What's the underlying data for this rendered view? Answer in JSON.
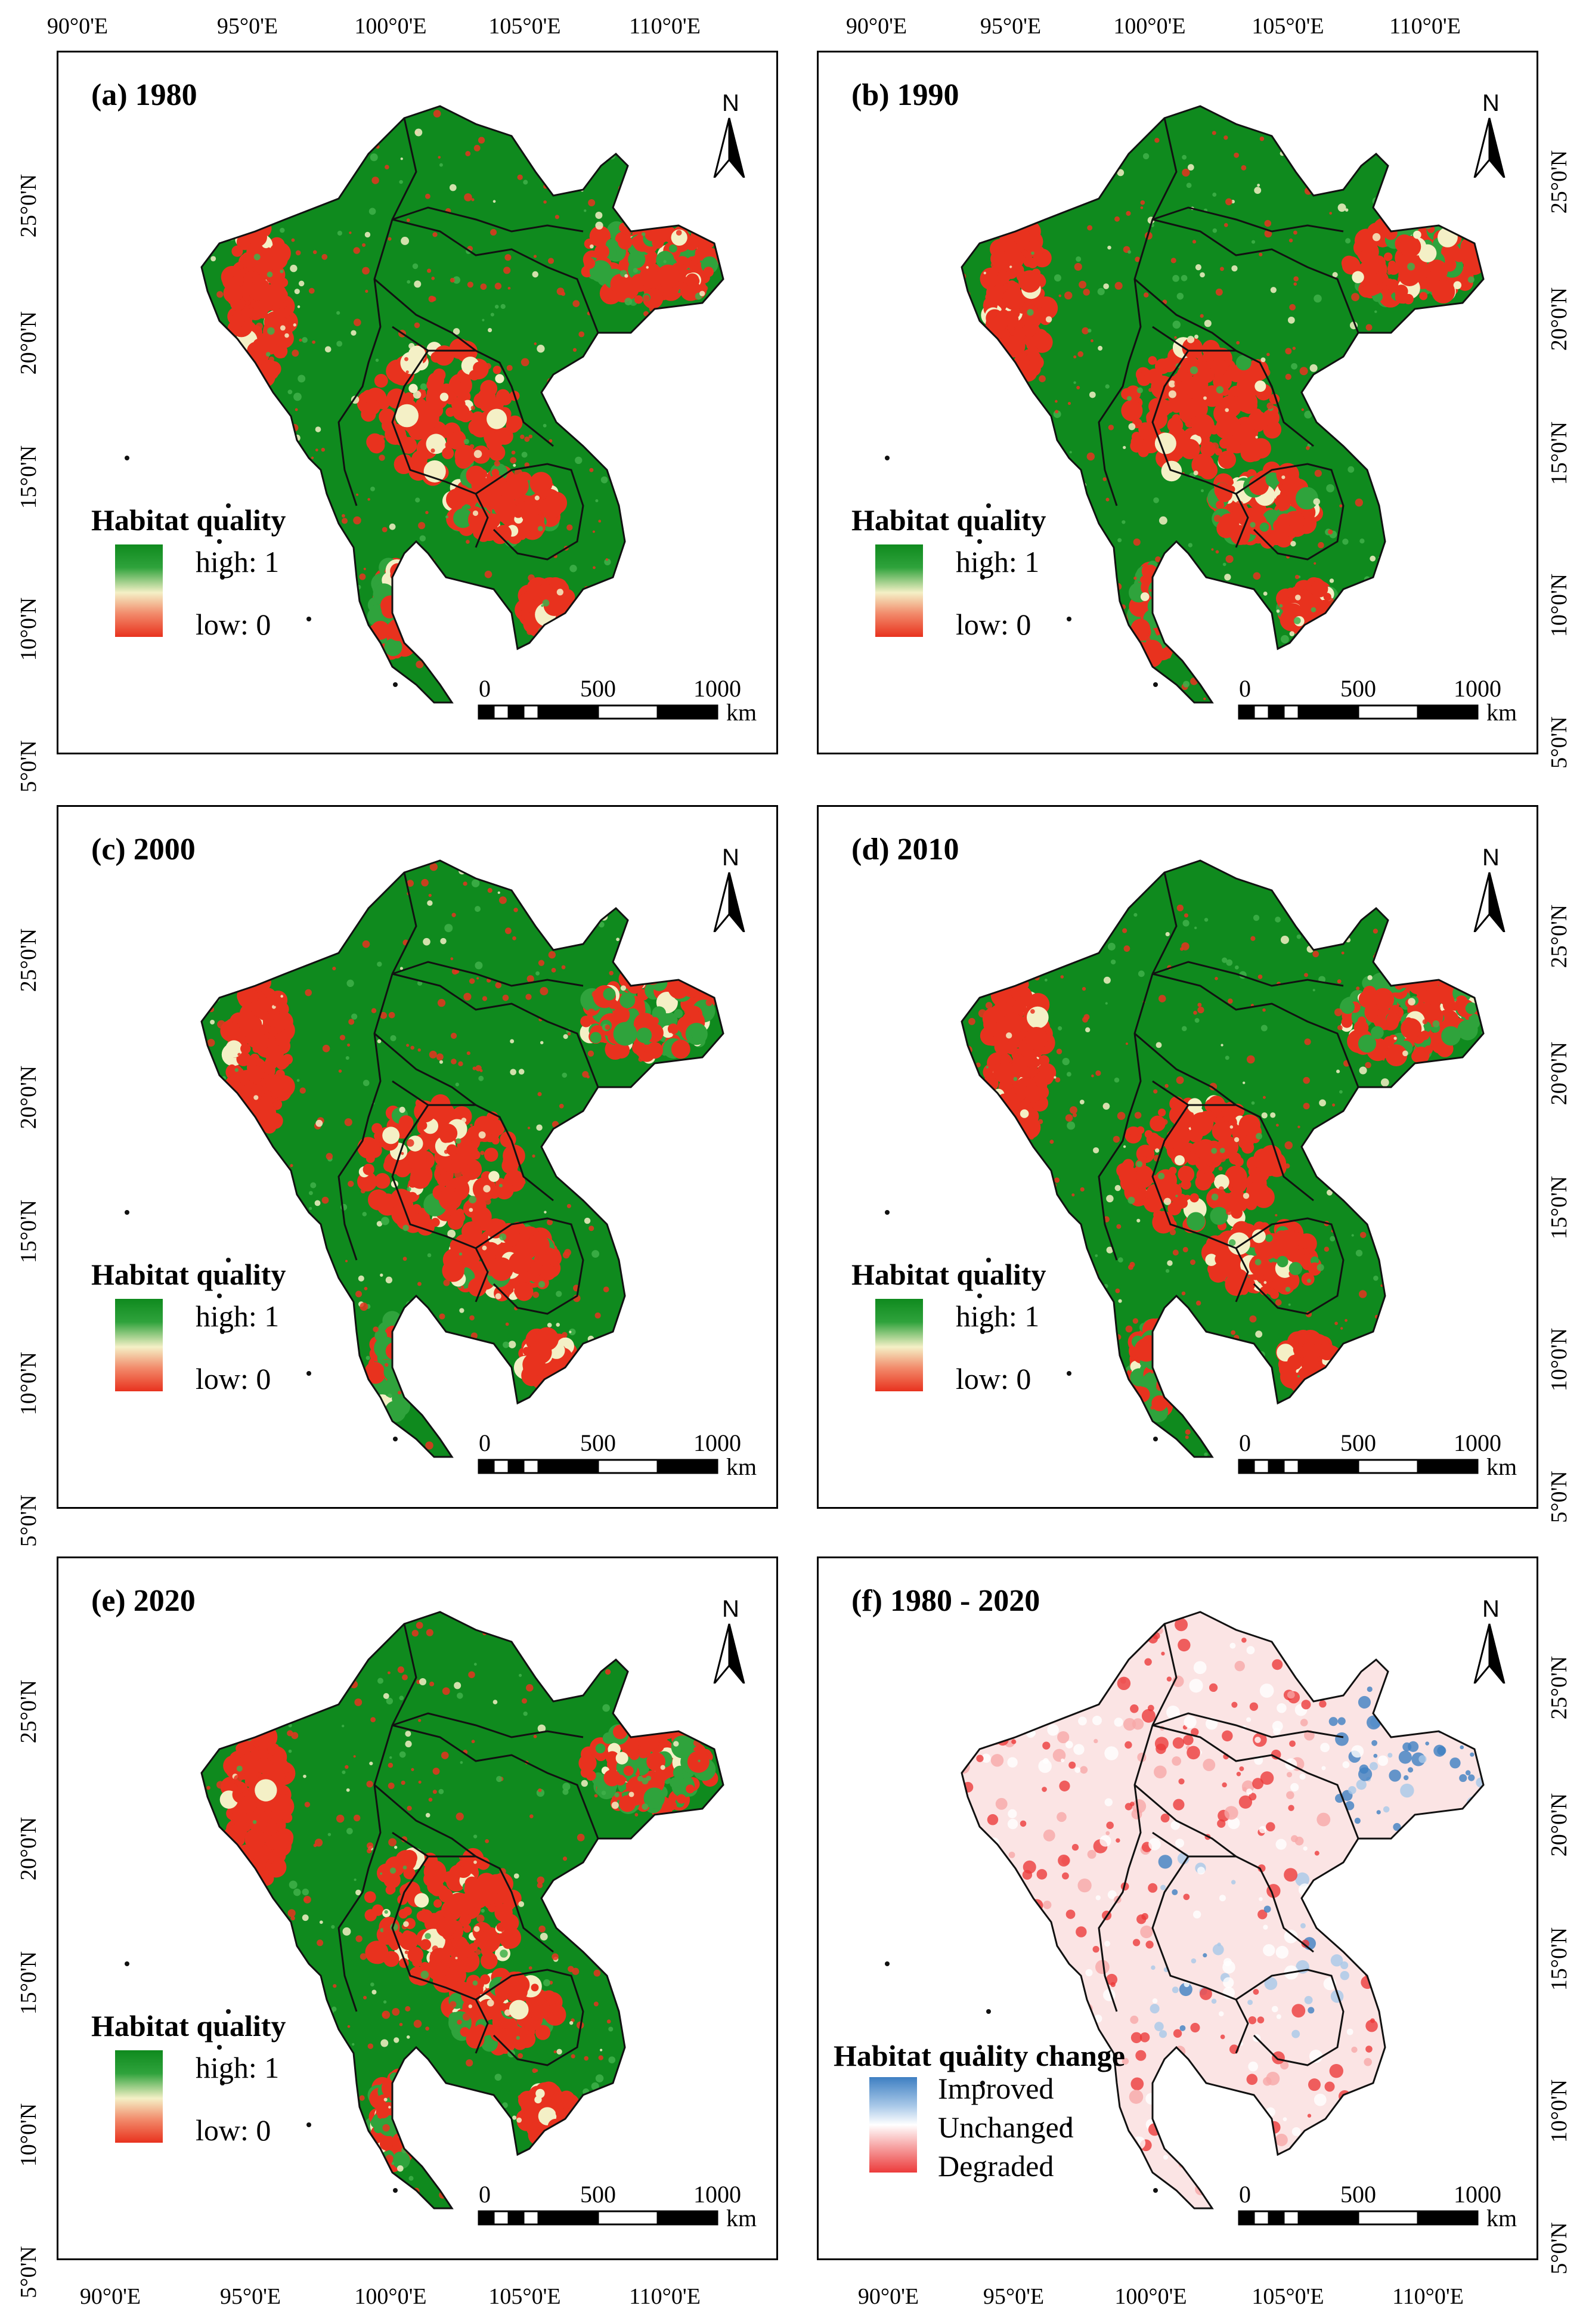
{
  "axes": {
    "top_lon_left": [
      "90°0'E",
      "95°0'E",
      "100°0'E",
      "105°0'E",
      "110°0'E"
    ],
    "top_lon_right": [
      "90°0'E",
      "95°0'E",
      "100°0'E",
      "105°0'E",
      "110°0'E"
    ],
    "bottom_lon_left": [
      "90°0'E",
      "95°0'E",
      "100°0'E",
      "105°0'E",
      "110°0'E"
    ],
    "bottom_lon_right": [
      "90°0'E",
      "95°0'E",
      "100°0'E",
      "105°0'E",
      "110°0'E"
    ],
    "left_lat": [
      "25°0'N",
      "20°0'N",
      "15°0'N",
      "10°0'N",
      "5°0'N"
    ],
    "right_lat": [
      "25°0'N",
      "20°0'N",
      "15°0'N",
      "10°0'N",
      "5°0'N"
    ]
  },
  "panels": [
    {
      "title": "(a) 1980",
      "type": "quality"
    },
    {
      "title": "(b) 1990",
      "type": "quality"
    },
    {
      "title": "(c) 2000",
      "type": "quality"
    },
    {
      "title": "(d) 2010",
      "type": "quality"
    },
    {
      "title": "(e) 2020",
      "type": "quality"
    },
    {
      "title": "(f) 1980 - 2020",
      "type": "change"
    }
  ],
  "legend_quality": {
    "title": "Habitat quality",
    "high": "high: 1",
    "low": "low: 0",
    "colors": {
      "high": "#0f8a1e",
      "mid": "#f4f0c6",
      "low": "#e8321e"
    }
  },
  "legend_change": {
    "title": "Habitat quality change",
    "improved": "Improved",
    "unchanged": "Unchanged",
    "degraded": "Degraded",
    "colors": {
      "improved": "#3e7fc2",
      "unchanged": "#ffffff",
      "degraded": "#ec3b3b"
    }
  },
  "scalebar": {
    "ticks": [
      "0",
      "500",
      "1000"
    ],
    "unit": "km"
  },
  "north_label": "N"
}
